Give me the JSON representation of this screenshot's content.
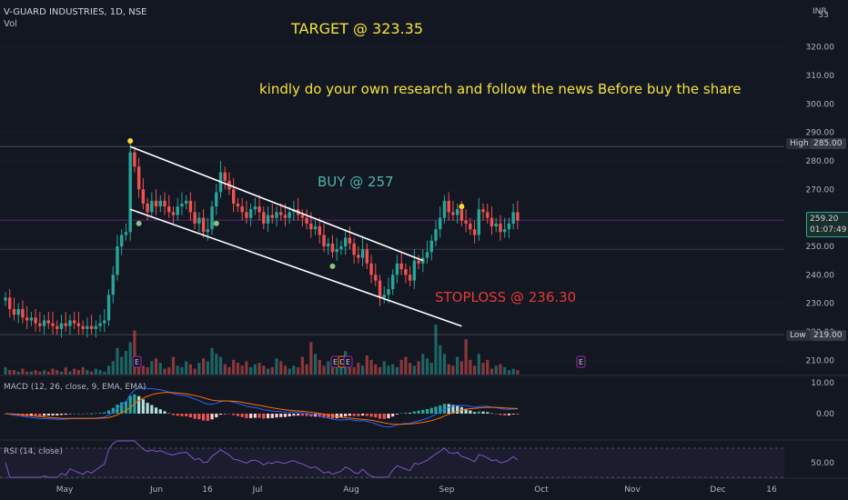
{
  "header": {
    "symbol": "V-GUARD INDUSTRIES, 1D, NSE",
    "volume_label": "Vol"
  },
  "currency": "INR",
  "annotations": {
    "target": "TARGET @ 323.35",
    "note": "kindly do your own research and follow the news Before buy the share",
    "buy": "BUY @ 257",
    "stoploss": "STOPLOSS @ 236.30"
  },
  "tags": {
    "high_label": "High",
    "high_value": "285.00",
    "low_label": "Low",
    "low_value": "219.00",
    "last_price": "259.20",
    "countdown": "01:07:49"
  },
  "panes": {
    "macd": "MACD (12, 26, close, 9, EMA, EMA)",
    "rsi": "RSI (14, close)"
  },
  "event_markers": [
    "E",
    "E",
    "D",
    "E",
    "E"
  ],
  "colors": {
    "up": "#26a69a",
    "down": "#ef5350",
    "background": "#131722",
    "grid": "#2a2e39",
    "annotation": "#f5e33a",
    "dividend": "#4db6ac",
    "macd_line": "#2962ff",
    "signal_line": "#ff6d00",
    "rsi_line": "#7e57c2"
  },
  "chart_data": {
    "type": "candlestick",
    "price_axis": {
      "ticks": [
        "320.00",
        "310.00",
        "300.00",
        "290.00",
        "280.00",
        "270.00",
        "260.00",
        "250.00",
        "240.00",
        "230.00",
        "220.00",
        "210.00"
      ],
      "top_partial": "33",
      "range": [
        205,
        332
      ]
    },
    "time_axis": [
      "May",
      "Jun",
      "16",
      "Jul",
      "Aug",
      "Sep",
      "Oct",
      "Nov",
      "Dec",
      "16"
    ],
    "macd_axis": [
      "10.00",
      "0.00"
    ],
    "rsi_axis": [
      "50.00"
    ],
    "closes": [
      232,
      228,
      226,
      228,
      225,
      224,
      225,
      223,
      222,
      224,
      223,
      222,
      221,
      223,
      222,
      224,
      223,
      222,
      221,
      222,
      221,
      222,
      223,
      224,
      233,
      240,
      250,
      254,
      255,
      283,
      278,
      270,
      265,
      262,
      266,
      264,
      266,
      264,
      262,
      261,
      264,
      265,
      266,
      262,
      258,
      260,
      255,
      256,
      264,
      269,
      276,
      273,
      270,
      265,
      264,
      262,
      260,
      263,
      264,
      262,
      258,
      261,
      260,
      262,
      261,
      260,
      262,
      263,
      261,
      260,
      258,
      256,
      257,
      254,
      250,
      251,
      248,
      249,
      250,
      253,
      251,
      247,
      246,
      249,
      244,
      240,
      238,
      232,
      233,
      235,
      240,
      244,
      242,
      240,
      238,
      245,
      244,
      246,
      248,
      252,
      256,
      260,
      266,
      262,
      261,
      263,
      259,
      258,
      256,
      254,
      263,
      262,
      260,
      257,
      258,
      255,
      256,
      258,
      262,
      259
    ],
    "swing_high": 285,
    "swing_low": 219,
    "buy_level": 257,
    "stoploss_level": 236.3,
    "target_level": 323.35,
    "channel_upper": {
      "from": [
        29,
        285
      ],
      "to": [
        97,
        245
      ]
    },
    "channel_lower": {
      "from": [
        29,
        263
      ],
      "to": [
        106,
        222
      ]
    },
    "dividend_marks": [
      {
        "i": 31,
        "v": 258
      },
      {
        "i": 49,
        "v": 258
      },
      {
        "i": 76,
        "v": 243
      }
    ],
    "high_marks": [
      {
        "i": 29,
        "v": 287
      },
      {
        "i": 106,
        "v": 264
      }
    ],
    "volume": [
      5,
      3,
      3,
      2,
      4,
      2,
      2,
      3,
      2,
      3,
      2,
      4,
      3,
      2,
      5,
      2,
      4,
      3,
      5,
      3,
      2,
      4,
      3,
      2,
      6,
      9,
      18,
      12,
      16,
      22,
      30,
      10,
      6,
      5,
      9,
      11,
      8,
      4,
      5,
      12,
      6,
      5,
      9,
      7,
      4,
      8,
      11,
      9,
      18,
      14,
      12,
      7,
      5,
      10,
      8,
      6,
      9,
      5,
      7,
      8,
      6,
      4,
      5,
      11,
      9,
      6,
      4,
      6,
      5,
      12,
      7,
      22,
      14,
      10,
      6,
      9,
      7,
      11,
      9,
      16,
      7,
      5,
      8,
      6,
      13,
      10,
      7,
      5,
      9,
      6,
      7,
      5,
      10,
      12,
      8,
      6,
      9,
      14,
      11,
      8,
      34,
      20,
      14,
      7,
      6,
      12,
      9,
      24,
      10,
      6,
      14,
      8,
      10,
      4,
      6,
      7,
      5,
      3,
      4,
      3
    ]
  }
}
